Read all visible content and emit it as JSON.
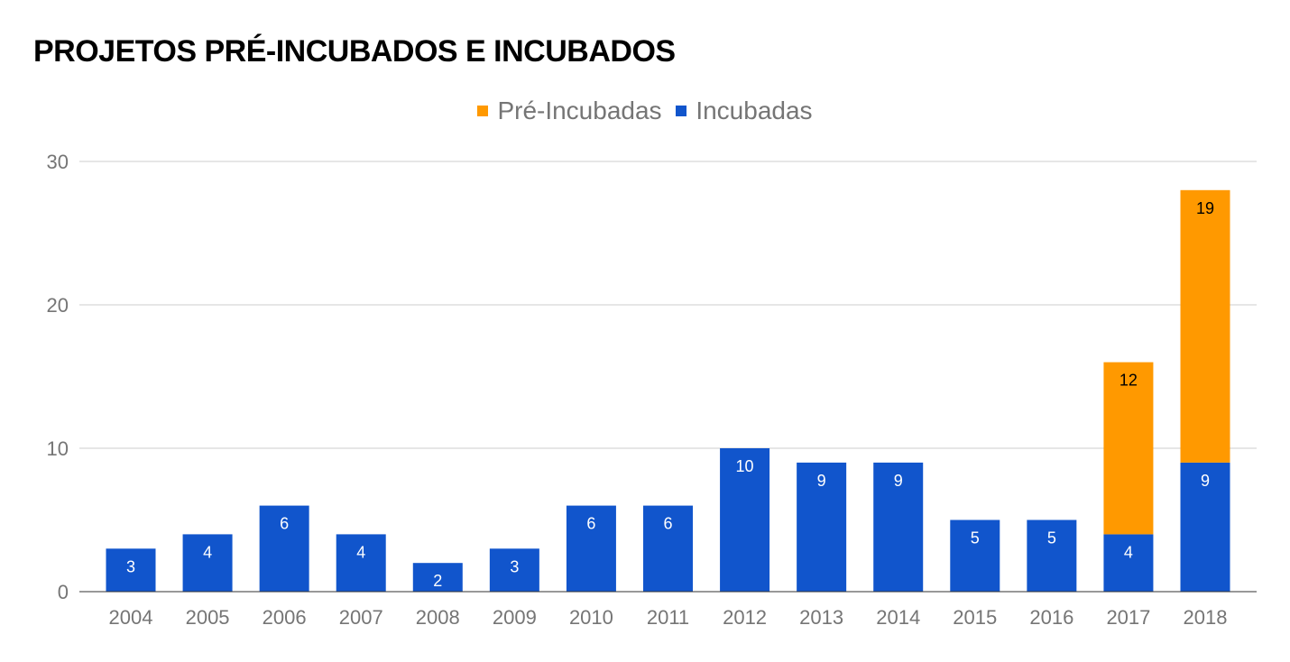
{
  "chart_data": {
    "type": "bar",
    "stacked": true,
    "title": "PROJETOS PRÉ-INCUBADOS E INCUBADOS",
    "categories": [
      "2004",
      "2005",
      "2006",
      "2007",
      "2008",
      "2009",
      "2010",
      "2011",
      "2012",
      "2013",
      "2014",
      "2015",
      "2016",
      "2017",
      "2018"
    ],
    "series": [
      {
        "name": "Incubadas",
        "color": "#1155cc",
        "values": [
          3,
          4,
          6,
          4,
          2,
          3,
          6,
          6,
          10,
          9,
          9,
          5,
          5,
          4,
          9
        ]
      },
      {
        "name": "Pré-Incubadas",
        "color": "#ff9900",
        "values": [
          0,
          0,
          0,
          0,
          0,
          0,
          0,
          0,
          0,
          0,
          0,
          0,
          0,
          12,
          19
        ]
      }
    ],
    "legend_order": [
      "Pré-Incubadas",
      "Incubadas"
    ],
    "legend_placement": "top",
    "ylim": [
      0,
      30
    ],
    "yticks": [
      0,
      10,
      20,
      30
    ],
    "grid": true,
    "xlabel": "",
    "ylabel": ""
  }
}
